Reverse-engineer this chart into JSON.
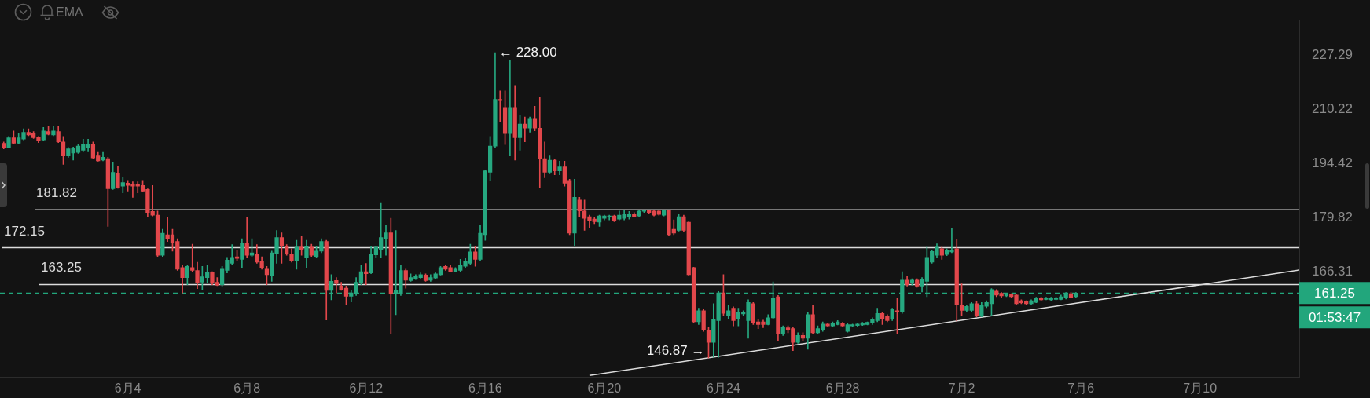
{
  "chart_data": {
    "type": "candlestick",
    "x": [
      "--05-30T20:00",
      "--05-31T00:00",
      "--05-31T04:00",
      "--05-31T08:00",
      "--05-31T12:00",
      "--05-31T16:00",
      "--05-31T20:00",
      "--06-01T00:00",
      "--06-01T04:00",
      "--06-01T08:00",
      "--06-01T12:00",
      "--06-01T16:00",
      "--06-01T20:00",
      "--06-02T00:00",
      "--06-02T04:00",
      "--06-02T08:00",
      "--06-02T12:00",
      "--06-02T16:00",
      "--06-02T20:00",
      "--06-03T00:00",
      "--06-03T04:00",
      "--06-03T08:00",
      "--06-03T12:00",
      "--06-03T16:00",
      "--06-03T20:00",
      "--06-04T00:00",
      "--06-04T04:00",
      "--06-04T08:00",
      "--06-04T12:00",
      "--06-04T16:00",
      "--06-04T20:00",
      "--06-05T00:00",
      "--06-05T04:00",
      "--06-05T08:00",
      "--06-05T12:00",
      "--06-05T16:00",
      "--06-05T20:00",
      "--06-06T00:00",
      "--06-06T04:00",
      "--06-06T08:00",
      "--06-06T12:00",
      "--06-06T16:00",
      "--06-06T20:00",
      "--06-07T00:00",
      "--06-07T04:00",
      "--06-07T08:00",
      "--06-07T12:00",
      "--06-07T16:00",
      "--06-07T20:00",
      "--06-08T00:00",
      "--06-08T04:00",
      "--06-08T08:00",
      "--06-08T12:00",
      "--06-08T16:00",
      "--06-08T20:00",
      "--06-09T00:00",
      "--06-09T04:00",
      "--06-09T08:00",
      "--06-09T12:00",
      "--06-09T16:00",
      "--06-09T20:00",
      "--06-10T00:00",
      "--06-10T04:00",
      "--06-10T08:00",
      "--06-10T12:00",
      "--06-10T16:00",
      "--06-10T20:00",
      "--06-11T00:00",
      "--06-11T04:00",
      "--06-11T08:00",
      "--06-11T12:00",
      "--06-11T16:00",
      "--06-11T20:00",
      "--06-12T00:00",
      "--06-12T04:00",
      "--06-12T08:00",
      "--06-12T12:00",
      "--06-12T16:00",
      "--06-12T20:00",
      "--06-13T00:00",
      "--06-13T04:00",
      "--06-13T08:00",
      "--06-13T12:00",
      "--06-13T16:00",
      "--06-13T20:00",
      "--06-14T00:00",
      "--06-14T04:00",
      "--06-14T08:00",
      "--06-14T12:00",
      "--06-14T16:00",
      "--06-14T20:00",
      "--06-15T00:00",
      "--06-15T04:00",
      "--06-15T08:00",
      "--06-15T12:00",
      "--06-15T16:00",
      "--06-15T20:00",
      "--06-16T00:00",
      "--06-16T04:00",
      "--06-16T08:00",
      "--06-16T12:00",
      "--06-16T16:00",
      "--06-16T20:00",
      "--06-17T00:00",
      "--06-17T04:00",
      "--06-17T08:00",
      "--06-17T12:00",
      "--06-17T16:00",
      "--06-17T20:00",
      "--06-18T00:00",
      "--06-18T04:00",
      "--06-18T08:00",
      "--06-18T12:00",
      "--06-18T16:00",
      "--06-18T20:00",
      "--06-19T00:00",
      "--06-19T04:00",
      "--06-19T08:00",
      "--06-19T12:00",
      "--06-19T16:00",
      "--06-19T20:00",
      "--06-20T00:00",
      "--06-20T04:00",
      "--06-20T08:00",
      "--06-20T12:00",
      "--06-20T16:00",
      "--06-20T20:00",
      "--06-21T00:00",
      "--06-21T04:00",
      "--06-21T08:00",
      "--06-21T12:00",
      "--06-21T16:00",
      "--06-21T20:00",
      "--06-22T00:00",
      "--06-22T04:00",
      "--06-22T08:00",
      "--06-22T12:00",
      "--06-22T16:00",
      "--06-22T20:00",
      "--06-23T00:00",
      "--06-23T04:00",
      "--06-23T08:00",
      "--06-23T12:00",
      "--06-23T16:00",
      "--06-23T20:00",
      "--06-24T00:00",
      "--06-24T04:00",
      "--06-24T08:00",
      "--06-24T12:00",
      "--06-24T16:00",
      "--06-24T20:00",
      "--06-25T00:00",
      "--06-25T04:00",
      "--06-25T08:00",
      "--06-25T12:00",
      "--06-25T16:00",
      "--06-25T20:00",
      "--06-26T00:00",
      "--06-26T04:00",
      "--06-26T08:00",
      "--06-26T12:00",
      "--06-26T16:00",
      "--06-26T20:00",
      "--06-27T00:00",
      "--06-27T04:00",
      "--06-27T08:00",
      "--06-27T12:00",
      "--06-27T16:00",
      "--06-27T20:00",
      "--06-28T00:00",
      "--06-28T04:00",
      "--06-28T08:00",
      "--06-28T12:00",
      "--06-28T16:00",
      "--06-28T20:00",
      "--06-29T00:00",
      "--06-29T04:00",
      "--06-29T08:00",
      "--06-29T12:00",
      "--06-29T16:00",
      "--06-29T20:00",
      "--06-30T00:00",
      "--06-30T04:00",
      "--06-30T08:00",
      "--06-30T12:00",
      "--06-30T16:00",
      "--06-30T20:00",
      "--07-01T00:00",
      "--07-01T04:00",
      "--07-01T08:00",
      "--07-01T12:00",
      "--07-01T16:00",
      "--07-01T20:00",
      "--07-02T00:00",
      "--07-02T04:00",
      "--07-02T08:00",
      "--07-02T12:00",
      "--07-02T16:00",
      "--07-02T20:00",
      "--07-03T00:00",
      "--07-03T04:00",
      "--07-03T08:00",
      "--07-03T12:00",
      "--07-03T16:00",
      "--07-03T20:00",
      "--07-04T00:00",
      "--07-04T04:00",
      "--07-04T08:00",
      "--07-04T12:00",
      "--07-04T16:00",
      "--07-04T20:00",
      "--07-05T00:00",
      "--07-05T04:00",
      "--07-05T08:00",
      "--07-05T12:00",
      "--07-05T16:00",
      "--07-05T20:00"
    ],
    "series": [
      {
        "ohlc": [
          [
            200.1,
            200.5,
            198.5,
            198.8
          ],
          [
            198.9,
            202.1,
            198.8,
            201.7
          ],
          [
            201.7,
            203.7,
            199.9,
            200.1
          ],
          [
            200.1,
            202.9,
            199.9,
            201.7
          ],
          [
            201.3,
            204.3,
            201.1,
            203.3
          ],
          [
            203.3,
            204.3,
            202.3,
            202.5
          ],
          [
            203.0,
            203.5,
            201.5,
            201.7
          ],
          [
            201.9,
            202.1,
            200.3,
            201.0
          ],
          [
            201.1,
            204.7,
            200.9,
            203.7
          ],
          [
            203.5,
            205.0,
            202.5,
            202.7
          ],
          [
            202.5,
            205.0,
            202.3,
            203.7
          ],
          [
            203.5,
            205.0,
            200.3,
            200.5
          ],
          [
            200.5,
            202.1,
            194.1,
            196.5
          ],
          [
            196.5,
            198.9,
            196.1,
            198.5
          ],
          [
            197.3,
            199.0,
            195.3,
            198.8
          ],
          [
            197.5,
            199.9,
            197.2,
            199.3
          ],
          [
            198.1,
            201.3,
            197.9,
            199.9
          ],
          [
            198.8,
            201.3,
            197.9,
            199.7
          ],
          [
            199.7,
            200.5,
            195.7,
            195.9
          ],
          [
            196.5,
            197.7,
            195.0,
            195.1
          ],
          [
            195.3,
            197.7,
            195.1,
            196.1
          ],
          [
            195.7,
            196.1,
            177.5,
            187.4
          ],
          [
            187.4,
            194.6,
            187.2,
            191.9
          ],
          [
            191.5,
            193.6,
            187.5,
            187.8
          ],
          [
            188.1,
            190.4,
            186.3,
            189.1
          ],
          [
            188.9,
            189.7,
            186.8,
            188.3
          ],
          [
            188.5,
            189.3,
            185.1,
            188.1
          ],
          [
            188.5,
            189.3,
            186.3,
            188.1
          ],
          [
            188.3,
            189.7,
            186.5,
            186.8
          ],
          [
            187.2,
            187.4,
            180.0,
            181.1
          ],
          [
            181.4,
            188.3,
            180.2,
            180.4
          ],
          [
            180.4,
            181.5,
            169.9,
            170.3
          ],
          [
            170.3,
            176.8,
            169.9,
            175.8
          ],
          [
            175.4,
            179.9,
            173.7,
            174.4
          ],
          [
            175.4,
            176.8,
            171.3,
            173.3
          ],
          [
            173.7,
            174.4,
            166.6,
            166.9
          ],
          [
            167.3,
            167.9,
            161.3,
            164.9
          ],
          [
            164.9,
            167.9,
            163.2,
            167.6
          ],
          [
            167.3,
            173.0,
            166.3,
            166.6
          ],
          [
            166.6,
            168.6,
            162.3,
            163.6
          ],
          [
            163.8,
            167.6,
            162.1,
            165.1
          ],
          [
            164.9,
            167.8,
            163.6,
            166.2
          ],
          [
            166.2,
            166.3,
            163.2,
            163.6
          ],
          [
            163.8,
            164.9,
            163.0,
            163.1
          ],
          [
            163.2,
            167.6,
            162.9,
            166.9
          ],
          [
            166.6,
            169.6,
            166.0,
            169.1
          ],
          [
            168.3,
            172.9,
            167.9,
            169.6
          ],
          [
            169.9,
            171.6,
            168.9,
            169.5
          ],
          [
            169.3,
            174.4,
            167.3,
            173.3
          ],
          [
            173.3,
            179.9,
            169.6,
            170.3
          ],
          [
            170.3,
            174.4,
            169.9,
            170.9
          ],
          [
            170.6,
            172.9,
            168.3,
            168.6
          ],
          [
            168.9,
            169.9,
            166.9,
            167.3
          ],
          [
            166.9,
            167.6,
            163.2,
            165.6
          ],
          [
            165.3,
            171.3,
            164.0,
            170.9
          ],
          [
            170.6,
            176.5,
            168.3,
            174.7
          ],
          [
            174.7,
            175.9,
            168.3,
            172.6
          ],
          [
            172.6,
            172.9,
            170.3,
            170.6
          ],
          [
            170.6,
            171.9,
            168.6,
            168.9
          ],
          [
            168.9,
            174.0,
            166.9,
            172.3
          ],
          [
            172.3,
            175.1,
            170.3,
            171.6
          ],
          [
            169.6,
            174.0,
            167.3,
            172.6
          ],
          [
            172.3,
            173.0,
            169.9,
            170.3
          ],
          [
            169.9,
            172.4,
            169.6,
            171.3
          ],
          [
            171.3,
            174.4,
            170.9,
            173.7
          ],
          [
            173.7,
            174.0,
            155.1,
            161.9
          ],
          [
            161.9,
            165.6,
            159.7,
            164.0
          ],
          [
            164.2,
            164.9,
            161.3,
            163.5
          ],
          [
            162.9,
            163.8,
            161.9,
            162.1
          ],
          [
            162.4,
            162.9,
            158.5,
            160.5
          ],
          [
            160.5,
            161.9,
            159.2,
            161.3
          ],
          [
            161.0,
            164.9,
            160.7,
            163.8
          ],
          [
            163.6,
            167.9,
            163.2,
            166.3
          ],
          [
            166.3,
            168.3,
            163.2,
            165.8
          ],
          [
            166.0,
            172.6,
            165.8,
            170.6
          ],
          [
            170.4,
            172.6,
            169.6,
            172.3
          ],
          [
            171.6,
            183.7,
            169.6,
            174.7
          ],
          [
            174.4,
            177.9,
            170.3,
            175.9
          ],
          [
            175.9,
            179.6,
            152.0,
            161.0
          ],
          [
            161.0,
            176.5,
            156.3,
            161.9
          ],
          [
            161.0,
            167.9,
            160.7,
            166.6
          ],
          [
            166.6,
            166.9,
            162.4,
            164.3
          ],
          [
            164.2,
            165.8,
            164.0,
            164.9
          ],
          [
            164.6,
            165.6,
            164.4,
            165.3
          ],
          [
            164.9,
            166.0,
            164.6,
            165.6
          ],
          [
            165.5,
            165.8,
            164.0,
            164.2
          ],
          [
            164.3,
            165.6,
            164.0,
            164.9
          ],
          [
            164.8,
            166.0,
            164.6,
            165.8
          ],
          [
            165.6,
            167.6,
            165.5,
            167.3
          ],
          [
            167.6,
            167.9,
            166.6,
            166.9
          ],
          [
            167.3,
            167.8,
            166.2,
            166.3
          ],
          [
            166.4,
            167.3,
            166.2,
            166.9
          ],
          [
            166.6,
            169.3,
            166.3,
            167.9
          ],
          [
            167.6,
            169.5,
            167.3,
            168.9
          ],
          [
            168.3,
            173.0,
            167.9,
            171.1
          ],
          [
            171.1,
            172.6,
            167.6,
            169.3
          ],
          [
            169.3,
            177.9,
            168.9,
            175.8
          ],
          [
            175.4,
            192.6,
            174.0,
            192.3
          ],
          [
            191.9,
            202.1,
            189.7,
            199.3
          ],
          [
            199.3,
            228.0,
            198.9,
            213.2
          ],
          [
            213.2,
            215.8,
            206.5,
            212.8
          ],
          [
            210.7,
            215.8,
            199.7,
            202.9
          ],
          [
            202.9,
            225.5,
            196.5,
            210.7
          ],
          [
            210.7,
            217.5,
            195.3,
            201.7
          ],
          [
            201.7,
            208.2,
            198.1,
            205.7
          ],
          [
            205.7,
            207.8,
            200.5,
            204.5
          ],
          [
            204.5,
            207.8,
            203.3,
            207.4
          ],
          [
            207.4,
            211.1,
            203.7,
            204.5
          ],
          [
            204.5,
            213.8,
            187.8,
            195.7
          ],
          [
            195.7,
            200.5,
            190.4,
            191.9
          ],
          [
            191.9,
            196.5,
            191.5,
            195.3
          ],
          [
            195.3,
            195.6,
            191.2,
            192.3
          ],
          [
            192.3,
            195.0,
            191.2,
            193.4
          ],
          [
            193.4,
            195.0,
            188.1,
            188.9
          ],
          [
            189.7,
            190.0,
            175.4,
            175.8
          ],
          [
            175.8,
            190.0,
            172.6,
            185.1
          ],
          [
            184.4,
            185.1,
            179.9,
            181.5
          ],
          [
            181.5,
            184.4,
            176.5,
            179.6
          ],
          [
            180.0,
            180.4,
            177.2,
            178.9
          ],
          [
            179.4,
            179.9,
            178.2,
            178.7
          ],
          [
            178.6,
            180.4,
            177.5,
            180.2
          ],
          [
            179.6,
            180.4,
            179.2,
            180.2
          ],
          [
            179.9,
            180.4,
            179.2,
            180.2
          ],
          [
            180.2,
            180.4,
            178.7,
            178.9
          ],
          [
            179.4,
            181.5,
            179.2,
            180.4
          ],
          [
            179.6,
            181.6,
            179.2,
            180.7
          ],
          [
            179.9,
            181.4,
            179.4,
            180.7
          ],
          [
            180.7,
            181.1,
            179.9,
            180.0
          ],
          [
            180.2,
            181.6,
            180.0,
            181.5
          ],
          [
            181.4,
            181.8,
            181.1,
            181.6
          ],
          [
            181.6,
            181.8,
            180.9,
            181.1
          ],
          [
            181.5,
            181.6,
            180.2,
            180.4
          ],
          [
            181.5,
            181.6,
            180.4,
            180.6
          ],
          [
            180.4,
            181.8,
            180.2,
            181.6
          ],
          [
            181.6,
            181.8,
            175.2,
            175.4
          ],
          [
            176.8,
            179.2,
            175.4,
            175.8
          ],
          [
            176.5,
            180.7,
            176.3,
            180.0
          ],
          [
            180.0,
            180.4,
            176.1,
            176.5
          ],
          [
            178.6,
            178.7,
            165.3,
            165.6
          ],
          [
            167.3,
            167.4,
            154.5,
            154.7
          ],
          [
            154.7,
            157.8,
            154.1,
            157.2
          ],
          [
            157.2,
            157.5,
            152.6,
            152.9
          ],
          [
            152.9,
            153.5,
            146.87,
            150.2
          ],
          [
            150.2,
            158.8,
            147.0,
            155.3
          ],
          [
            155.0,
            161.6,
            147.0,
            161.3
          ],
          [
            161.3,
            165.6,
            156.0,
            156.6
          ],
          [
            156.0,
            158.5,
            155.3,
            157.2
          ],
          [
            157.8,
            158.1,
            153.8,
            155.0
          ],
          [
            155.3,
            157.8,
            153.8,
            156.9
          ],
          [
            156.5,
            157.2,
            156.1,
            156.9
          ],
          [
            155.0,
            159.7,
            151.1,
            159.1
          ],
          [
            158.8,
            159.1,
            154.1,
            154.4
          ],
          [
            154.7,
            155.3,
            153.2,
            154.1
          ],
          [
            154.7,
            155.1,
            153.4,
            154.1
          ],
          [
            154.1,
            156.3,
            154.0,
            155.6
          ],
          [
            155.6,
            163.9,
            155.3,
            160.1
          ],
          [
            160.4,
            160.7,
            150.5,
            152.0
          ],
          [
            152.0,
            153.8,
            151.7,
            153.5
          ],
          [
            153.4,
            153.8,
            152.3,
            152.9
          ],
          [
            153.2,
            153.5,
            148.4,
            150.2
          ],
          [
            150.2,
            152.3,
            150.0,
            151.7
          ],
          [
            151.7,
            152.3,
            150.5,
            151.1
          ],
          [
            151.1,
            156.9,
            148.7,
            156.3
          ],
          [
            156.3,
            158.4,
            152.0,
            152.3
          ],
          [
            152.3,
            153.8,
            152.0,
            153.2
          ],
          [
            152.9,
            154.7,
            152.6,
            154.2
          ],
          [
            154.2,
            154.4,
            153.6,
            153.8
          ],
          [
            153.8,
            154.7,
            153.6,
            154.4
          ],
          [
            154.1,
            155.0,
            154.0,
            154.7
          ],
          [
            154.4,
            154.6,
            153.6,
            153.8
          ],
          [
            152.6,
            154.4,
            152.4,
            154.1
          ],
          [
            153.8,
            154.2,
            153.6,
            154.1
          ],
          [
            153.9,
            154.4,
            153.7,
            154.2
          ],
          [
            154.0,
            154.6,
            153.9,
            154.4
          ],
          [
            154.1,
            154.7,
            154.0,
            154.6
          ],
          [
            154.4,
            155.6,
            154.1,
            155.3
          ],
          [
            155.0,
            157.8,
            154.7,
            156.6
          ],
          [
            156.6,
            156.9,
            154.1,
            155.3
          ],
          [
            156.0,
            156.3,
            154.7,
            155.0
          ],
          [
            155.3,
            157.8,
            155.0,
            157.5
          ],
          [
            157.2,
            160.1,
            152.0,
            156.9
          ],
          [
            156.9,
            166.3,
            156.6,
            164.3
          ],
          [
            164.3,
            165.3,
            162.9,
            163.2
          ],
          [
            163.6,
            164.6,
            163.1,
            164.3
          ],
          [
            164.3,
            164.6,
            162.6,
            162.9
          ],
          [
            162.9,
            164.9,
            161.5,
            164.5
          ],
          [
            164.0,
            172.3,
            160.4,
            169.6
          ],
          [
            168.6,
            171.6,
            168.3,
            171.2
          ],
          [
            170.3,
            173.1,
            169.6,
            172.3
          ],
          [
            171.9,
            172.3,
            169.3,
            170.3
          ],
          [
            170.5,
            171.9,
            170.2,
            171.6
          ],
          [
            171.1,
            177.0,
            170.9,
            171.6
          ],
          [
            171.9,
            174.3,
            154.9,
            158.5
          ],
          [
            158.5,
            163.4,
            156.1,
            157.3
          ],
          [
            157.3,
            158.5,
            157.0,
            158.2
          ],
          [
            157.3,
            159.1,
            157.0,
            158.8
          ],
          [
            158.8,
            159.3,
            155.8,
            156.1
          ],
          [
            156.1,
            159.1,
            155.8,
            158.5
          ],
          [
            158.2,
            159.5,
            157.9,
            159.1
          ],
          [
            158.8,
            162.3,
            156.1,
            162.1
          ],
          [
            161.7,
            162.1,
            160.4,
            160.8
          ],
          [
            161.2,
            161.4,
            160.3,
            160.6
          ],
          [
            160.6,
            161.2,
            160.4,
            161.1
          ],
          [
            160.9,
            161.1,
            160.3,
            160.4
          ],
          [
            160.8,
            160.9,
            158.6,
            158.8
          ],
          [
            159.5,
            159.7,
            158.8,
            159.0
          ],
          [
            159.3,
            159.5,
            158.6,
            158.8
          ],
          [
            158.8,
            159.7,
            158.6,
            159.5
          ],
          [
            159.1,
            160.3,
            159.0,
            160.1
          ],
          [
            160.1,
            160.3,
            159.5,
            159.7
          ],
          [
            159.8,
            160.3,
            159.7,
            160.1
          ],
          [
            159.7,
            160.3,
            159.5,
            160.1
          ],
          [
            159.8,
            160.3,
            159.7,
            160.1
          ],
          [
            159.8,
            160.8,
            159.7,
            160.4
          ],
          [
            160.1,
            161.4,
            159.9,
            161.1
          ],
          [
            161.1,
            161.4,
            160.1,
            160.3
          ],
          [
            160.4,
            161.4,
            160.3,
            161.25
          ]
        ],
        "colors": [
          "#e2474b",
          "#26a880",
          "#e2474b",
          "#26a880",
          "#26a880",
          "#e2474b",
          "#e2474b",
          "#e2474b",
          "#26a880",
          "#e2474b",
          "#26a880",
          "#e2474b",
          "#e2474b",
          "#26a880",
          "#26a880",
          "#26a880",
          "#26a880",
          "#26a880",
          "#e2474b",
          "#e2474b",
          "#26a880",
          "#e2474b",
          "#26a880",
          "#e2474b",
          "#26a880",
          "#e2474b",
          "#e2474b",
          "#e2474b",
          "#e2474b",
          "#e2474b",
          "#e2474b",
          "#e2474b",
          "#26a880",
          "#e2474b",
          "#e2474b",
          "#e2474b",
          "#e2474b",
          "#26a880",
          "#e2474b",
          "#e2474b",
          "#26a880",
          "#26a880",
          "#e2474b",
          "#e2474b",
          "#26a880",
          "#26a880",
          "#26a880",
          "#e2474b",
          "#26a880",
          "#e2474b",
          "#26a880",
          "#e2474b",
          "#e2474b",
          "#e2474b",
          "#26a880",
          "#26a880",
          "#e2474b",
          "#e2474b",
          "#e2474b",
          "#26a880",
          "#e2474b",
          "#26a880",
          "#e2474b",
          "#26a880",
          "#26a880",
          "#e2474b",
          "#26a880",
          "#e2474b",
          "#e2474b",
          "#e2474b",
          "#26a880",
          "#26a880",
          "#26a880",
          "#e2474b",
          "#26a880",
          "#26a880",
          "#26a880",
          "#26a880",
          "#e2474b",
          "#26a880",
          "#26a880",
          "#e2474b",
          "#26a880",
          "#26a880",
          "#26a880",
          "#e2474b",
          "#26a880",
          "#26a880",
          "#26a880",
          "#e2474b",
          "#e2474b",
          "#26a880",
          "#26a880",
          "#26a880",
          "#26a880",
          "#e2474b",
          "#26a880",
          "#26a880",
          "#26a880",
          "#26a880",
          "#e2474b",
          "#e2474b",
          "#26a880",
          "#e2474b",
          "#26a880",
          "#e2474b",
          "#26a880",
          "#e2474b",
          "#e2474b",
          "#e2474b",
          "#26a880",
          "#e2474b",
          "#26a880",
          "#e2474b",
          "#e2474b",
          "#26a880",
          "#e2474b",
          "#e2474b",
          "#e2474b",
          "#e2474b",
          "#26a880",
          "#26a880",
          "#26a880",
          "#e2474b",
          "#26a880",
          "#26a880",
          "#26a880",
          "#e2474b",
          "#26a880",
          "#26a880",
          "#e2474b",
          "#e2474b",
          "#e2474b",
          "#26a880",
          "#e2474b",
          "#e2474b",
          "#26a880",
          "#e2474b",
          "#e2474b",
          "#e2474b",
          "#26a880",
          "#e2474b",
          "#e2474b",
          "#26a880",
          "#26a880",
          "#e2474b",
          "#26a880",
          "#e2474b",
          "#26a880",
          "#26a880",
          "#26a880",
          "#e2474b",
          "#e2474b",
          "#e2474b",
          "#26a880",
          "#26a880",
          "#e2474b",
          "#26a880",
          "#e2474b",
          "#e2474b",
          "#26a880",
          "#e2474b",
          "#26a880",
          "#e2474b",
          "#26a880",
          "#26a880",
          "#e2474b",
          "#26a880",
          "#26a880",
          "#e2474b",
          "#26a880",
          "#26a880",
          "#26a880",
          "#26a880",
          "#26a880",
          "#26a880",
          "#26a880",
          "#e2474b",
          "#e2474b",
          "#26a880",
          "#e2474b",
          "#26a880",
          "#e2474b",
          "#26a880",
          "#e2474b",
          "#26a880",
          "#26a880",
          "#26a880",
          "#26a880",
          "#e2474b",
          "#26a880",
          "#26a880",
          "#e2474b",
          "#e2474b",
          "#26a880",
          "#26a880",
          "#e2474b",
          "#26a880",
          "#26a880",
          "#26a880",
          "#e2474b",
          "#e2474b",
          "#26a880",
          "#e2474b",
          "#e2474b",
          "#e2474b",
          "#e2474b",
          "#26a880",
          "#26a880",
          "#e2474b",
          "#26a880",
          "#26a880",
          "#26a880",
          "#26a880",
          "#26a880",
          "#e2474b",
          "#26a880"
        ]
      },
      {
        "type": "line",
        "x": [
          "--06-19T12:00",
          "--07-13T08:00"
        ],
        "values": [
          143.2,
          166.7
        ],
        "color": "#dcdcdc"
      }
    ],
    "xlim": [
      "--05-30T17:00",
      "--07-13T08:00"
    ],
    "xticks": [
      {
        "value": "--06-04",
        "label": "6月4"
      },
      {
        "value": "--06-08",
        "label": "6月8"
      },
      {
        "value": "--06-12",
        "label": "6月12"
      },
      {
        "value": "--06-16",
        "label": "6月16"
      },
      {
        "value": "--06-20",
        "label": "6月20"
      },
      {
        "value": "--06-24",
        "label": "6月24"
      },
      {
        "value": "--06-28",
        "label": "6月28"
      },
      {
        "value": "--07-02",
        "label": "7月2"
      },
      {
        "value": "--07-06",
        "label": "7月6"
      },
      {
        "value": "--07-10",
        "label": "7月10"
      }
    ],
    "ylim": [
      142.8,
      238.8
    ],
    "yticks": [
      166.31,
      179.82,
      194.42,
      210.22,
      227.29
    ],
    "log": true,
    "grid": false,
    "legend": false,
    "ref_lines": [
      {
        "axis": "y",
        "value": 181.82,
        "label": "181.82",
        "color": "#dcdcdc"
      },
      {
        "axis": "y",
        "value": 172.15,
        "label": "172.15",
        "color": "#dcdcdc"
      },
      {
        "axis": "y",
        "value": 163.25,
        "label": "163.25",
        "color": "#dcdcdc"
      },
      {
        "axis": "y",
        "value": 161.25,
        "label": "161.25",
        "color": "#22a67c",
        "line_style": "dashed"
      }
    ],
    "annotations": [
      {
        "text": "← 228.00",
        "x": "--06-16T08:00",
        "y": 228.0
      },
      {
        "text": "146.87 →",
        "x": "--06-23T12:00",
        "y": 146.87
      },
      "EMA",
      "01:53:47"
    ]
  }
}
